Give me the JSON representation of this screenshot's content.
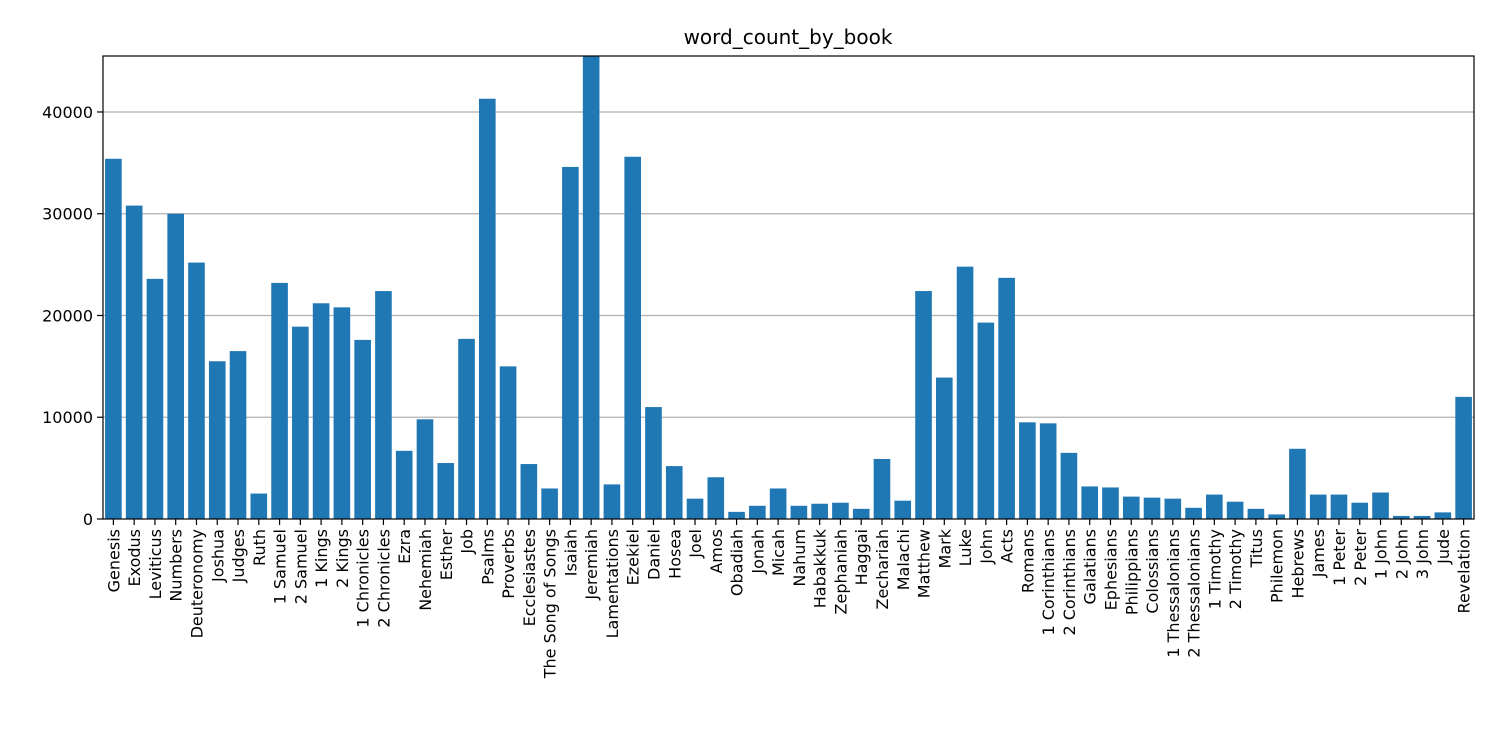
{
  "chart_data": {
    "type": "bar",
    "title": "word_count_by_book",
    "xlabel": "",
    "ylabel": "",
    "ylim": [
      0,
      45500
    ],
    "yticks": [
      0,
      10000,
      20000,
      30000,
      40000
    ],
    "grid": "y",
    "bar_color": "#1f77b4",
    "categories": [
      "Genesis",
      "Exodus",
      "Leviticus",
      "Numbers",
      "Deuteronomy",
      "Joshua",
      "Judges",
      "Ruth",
      "1 Samuel",
      "2 Samuel",
      "1 Kings",
      "2 Kings",
      "1 Chronicles",
      "2 Chronicles",
      "Ezra",
      "Nehemiah",
      "Esther",
      "Job",
      "Psalms",
      "Proverbs",
      "Ecclesiastes",
      "The Song of Songs",
      "Isaiah",
      "Jeremiah",
      "Lamentations",
      "Ezekiel",
      "Daniel",
      "Hosea",
      "Joel",
      "Amos",
      "Obadiah",
      "Jonah",
      "Micah",
      "Nahum",
      "Habakkuk",
      "Zephaniah",
      "Haggai",
      "Zechariah",
      "Malachi",
      "Matthew",
      "Mark",
      "Luke",
      "John",
      "Acts",
      "Romans",
      "1 Corinthians",
      "2 Corinthians",
      "Galatians",
      "Ephesians",
      "Philippians",
      "Colossians",
      "1 Thessalonians",
      "2 Thessalonians",
      "1 Timothy",
      "2 Timothy",
      "Titus",
      "Philemon",
      "Hebrews",
      "James",
      "1 Peter",
      "2 Peter",
      "1 John",
      "2 John",
      "3 John",
      "Jude",
      "Revelation"
    ],
    "values": [
      35400,
      30800,
      23600,
      30000,
      25200,
      15500,
      16500,
      2500,
      23200,
      18900,
      21200,
      20800,
      17600,
      22400,
      6700,
      9800,
      5500,
      17700,
      41300,
      15000,
      5400,
      3000,
      34600,
      45500,
      3400,
      35600,
      11000,
      5200,
      2000,
      4100,
      700,
      1300,
      3000,
      1300,
      1500,
      1600,
      1000,
      5900,
      1800,
      22400,
      13900,
      24800,
      19300,
      23700,
      9500,
      9400,
      6500,
      3200,
      3100,
      2200,
      2100,
      2000,
      1100,
      2400,
      1700,
      1000,
      450,
      6900,
      2400,
      2400,
      1600,
      2600,
      300,
      300,
      650,
      12000
    ]
  }
}
